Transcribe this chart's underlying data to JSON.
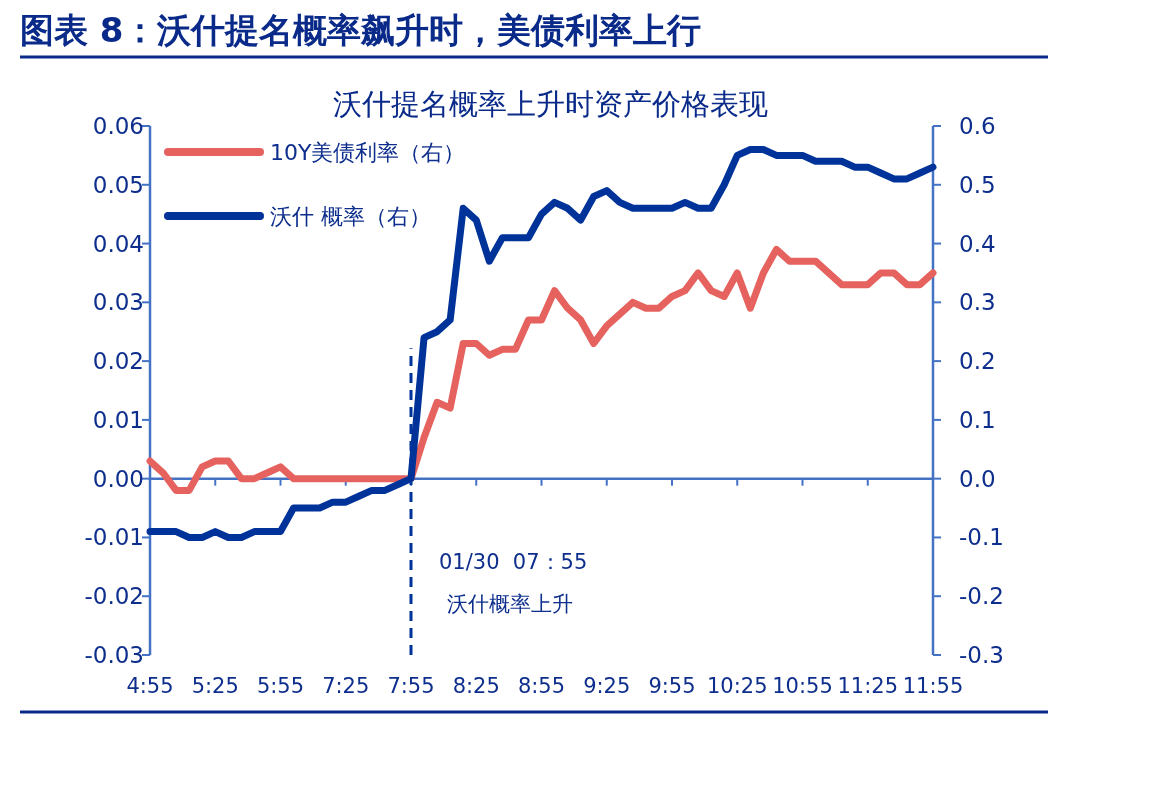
{
  "chart_data": {
    "type": "line",
    "title": "图表 8：沃什提名概率飙升时，美债利率上行",
    "subtitle": "沃什提名概率上升时资产价格表现",
    "categories": [
      "4:55",
      null,
      null,
      null,
      null,
      "5:25",
      null,
      null,
      null,
      null,
      "5:55",
      null,
      null,
      null,
      null,
      "7:25",
      null,
      null,
      null,
      null,
      "7:55",
      null,
      null,
      null,
      null,
      "8:25",
      null,
      null,
      null,
      null,
      "8:55",
      null,
      null,
      null,
      null,
      "9:25",
      null,
      null,
      null,
      null,
      "9:55",
      null,
      null,
      null,
      null,
      "10:25",
      null,
      null,
      null,
      null,
      "10:55",
      null,
      null,
      null,
      null,
      "11:25",
      null,
      null,
      null,
      null,
      "11:55"
    ],
    "ylim": [
      -0.03,
      0.06
    ],
    "yticks": [
      {
        "value": -0.03,
        "label": "-0.03"
      },
      {
        "value": -0.02,
        "label": "-0.02"
      },
      {
        "value": -0.01,
        "label": "-0.01"
      },
      {
        "value": 0,
        "label": "0.00"
      },
      {
        "value": 0.01,
        "label": "0.01"
      },
      {
        "value": 0.02,
        "label": "0.02"
      },
      {
        "value": 0.03,
        "label": "0.03"
      },
      {
        "value": 0.04,
        "label": "0.04"
      },
      {
        "value": 0.05,
        "label": "0.05"
      },
      {
        "value": 0.06,
        "label": "0.06"
      }
    ],
    "y2lim": [
      -0.3,
      0.6
    ],
    "y2ticks": [
      {
        "value": -0.3,
        "label": "-0.3"
      },
      {
        "value": -0.2,
        "label": "-0.2"
      },
      {
        "value": -0.1,
        "label": "-0.1"
      },
      {
        "value": 0,
        "label": "0.0"
      },
      {
        "value": 0.1,
        "label": "0.1"
      },
      {
        "value": 0.2,
        "label": "0.2"
      },
      {
        "value": 0.3,
        "label": "0.3"
      },
      {
        "value": 0.4,
        "label": "0.4"
      },
      {
        "value": 0.5,
        "label": "0.5"
      },
      {
        "value": 0.6,
        "label": "0.6"
      }
    ],
    "legend": "top left",
    "line_style": "solid",
    "marker": "none",
    "ref_lines": [
      {
        "axis": "x",
        "value": "7:55",
        "label": "01/30  07：55",
        "color": "#003399",
        "line_style": "dashed"
      },
      {
        "axis": "y",
        "value": 0,
        "color": "#4472c4",
        "line_style": "solid"
      }
    ],
    "annotations": [
      "沃什概率上升"
    ],
    "series": [
      {
        "name": "10Y美债利率（右）",
        "color": "#e5625e",
        "axis": "y2",
        "values": [
          0.03,
          0.01,
          -0.02,
          -0.02,
          0.02,
          0.03,
          0.03,
          0,
          0,
          0.01,
          0.02,
          0,
          0,
          0,
          0,
          0,
          0,
          0,
          0,
          0,
          0,
          0.07,
          0.13,
          0.12,
          0.23,
          0.23,
          0.21,
          0.22,
          0.22,
          0.27,
          0.27,
          0.32,
          0.29,
          0.27,
          0.23,
          0.26,
          0.28,
          0.3,
          0.29,
          0.29,
          0.31,
          0.32,
          0.35,
          0.32,
          0.31,
          0.35,
          0.29,
          0.35,
          0.39,
          0.37,
          0.37,
          0.37,
          0.35,
          0.33,
          0.33,
          0.33,
          0.35,
          0.35,
          0.33,
          0.33,
          0.35
        ]
      },
      {
        "name": "沃什 概率（右）",
        "color": "#003399",
        "axis": "y2",
        "values": [
          -0.09,
          -0.09,
          -0.09,
          -0.1,
          -0.1,
          -0.09,
          -0.1,
          -0.1,
          -0.09,
          -0.09,
          -0.09,
          -0.05,
          -0.05,
          -0.05,
          -0.04,
          -0.04,
          -0.03,
          -0.02,
          -0.02,
          -0.01,
          0.0,
          0.24,
          0.25,
          0.27,
          0.46,
          0.44,
          0.37,
          0.41,
          0.41,
          0.41,
          0.45,
          0.47,
          0.46,
          0.44,
          0.48,
          0.49,
          0.47,
          0.46,
          0.46,
          0.46,
          0.46,
          0.47,
          0.46,
          0.46,
          0.5,
          0.55,
          0.56,
          0.56,
          0.55,
          0.55,
          0.55,
          0.54,
          0.54,
          0.54,
          0.53,
          0.53,
          0.52,
          0.51,
          0.51,
          0.52,
          0.53
        ]
      }
    ]
  }
}
